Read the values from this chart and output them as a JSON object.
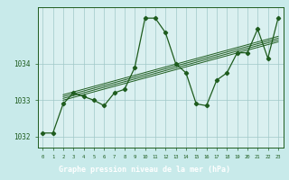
{
  "title": "Graphe pression niveau de la mer (hPa)",
  "bg_color": "#c8eaea",
  "plot_bg_color": "#daf0f0",
  "grid_color": "#a0c8c8",
  "line_color": "#1e5c1e",
  "footer_bg": "#2a5a2a",
  "footer_text_color": "#ffffff",
  "x_min": -0.5,
  "x_max": 23.5,
  "y_min": 1031.7,
  "y_max": 1035.55,
  "yticks": [
    1032,
    1033,
    1034
  ],
  "xticks": [
    0,
    1,
    2,
    3,
    4,
    5,
    6,
    7,
    8,
    9,
    10,
    11,
    12,
    13,
    14,
    15,
    16,
    17,
    18,
    19,
    20,
    21,
    22,
    23
  ],
  "main_y": [
    1032.1,
    1032.1,
    1032.9,
    1033.2,
    1033.1,
    1033.0,
    1032.85,
    1033.2,
    1033.3,
    1033.9,
    1035.25,
    1035.25,
    1034.85,
    1034.0,
    1033.75,
    1032.9,
    1032.85,
    1033.55,
    1033.75,
    1034.3,
    1034.3,
    1034.95,
    1034.15,
    1035.25
  ],
  "trend_lines": [
    {
      "x0": 2.0,
      "y0": 1033.05,
      "x1": 23,
      "y1": 1034.65
    },
    {
      "x0": 2.0,
      "y0": 1033.1,
      "x1": 23,
      "y1": 1034.7
    },
    {
      "x0": 2.0,
      "y0": 1033.15,
      "x1": 23,
      "y1": 1034.75
    },
    {
      "x0": 2.0,
      "y0": 1033.0,
      "x1": 23,
      "y1": 1034.6
    }
  ]
}
